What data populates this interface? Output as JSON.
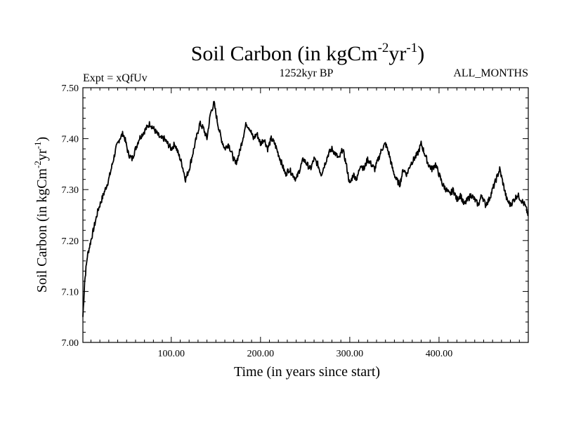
{
  "chart_data": {
    "type": "line",
    "title": {
      "main": "Soil Carbon (in kgCm",
      "sup1": "-2",
      "mid": "yr",
      "sup2": "-1",
      "end": ")"
    },
    "subtitle_left": "Expt = xQfUv",
    "subtitle_center": "1252kyr BP",
    "subtitle_right": "ALL_MONTHS",
    "xlabel": "Time (in years since start)",
    "ylabel": {
      "main": "Soil Carbon (in kgCm",
      "sup1": "-2",
      "mid": "yr",
      "sup2": "-1",
      "end": ")"
    },
    "xlim": [
      1,
      500
    ],
    "ylim": [
      7.0,
      7.5
    ],
    "x_ticks": [
      100,
      200,
      300,
      400
    ],
    "x_tick_labels": [
      "100.00",
      "200.00",
      "300.00",
      "400.00"
    ],
    "y_ticks": [
      7.0,
      7.1,
      7.2,
      7.3,
      7.4,
      7.5
    ],
    "y_tick_labels": [
      "7.00",
      "7.10",
      "7.20",
      "7.30",
      "7.40",
      "7.50"
    ],
    "grid": false,
    "line_color": "#000000",
    "series": [
      {
        "name": "Soil Carbon",
        "x": [
          1,
          3,
          6,
          10,
          14,
          18,
          22,
          26,
          30,
          34,
          38,
          42,
          46,
          48,
          52,
          56,
          60,
          64,
          68,
          72,
          76,
          80,
          84,
          88,
          92,
          96,
          100,
          104,
          108,
          112,
          116,
          120,
          124,
          128,
          132,
          136,
          140,
          144,
          148,
          152,
          156,
          160,
          164,
          168,
          172,
          176,
          180,
          184,
          188,
          192,
          196,
          200,
          204,
          208,
          212,
          216,
          220,
          224,
          228,
          232,
          236,
          240,
          244,
          248,
          252,
          256,
          260,
          264,
          268,
          272,
          276,
          280,
          284,
          288,
          292,
          296,
          300,
          304,
          308,
          312,
          316,
          320,
          324,
          328,
          332,
          336,
          340,
          344,
          348,
          352,
          356,
          360,
          364,
          368,
          372,
          376,
          380,
          384,
          388,
          392,
          396,
          400,
          404,
          408,
          412,
          416,
          420,
          424,
          428,
          432,
          436,
          440,
          444,
          448,
          452,
          456,
          460,
          464,
          468,
          472,
          476,
          480,
          484,
          488,
          492,
          496,
          500
        ],
        "values": [
          7.05,
          7.12,
          7.17,
          7.2,
          7.23,
          7.26,
          7.28,
          7.3,
          7.32,
          7.35,
          7.38,
          7.4,
          7.41,
          7.4,
          7.37,
          7.36,
          7.38,
          7.4,
          7.41,
          7.42,
          7.43,
          7.42,
          7.41,
          7.4,
          7.4,
          7.39,
          7.38,
          7.39,
          7.37,
          7.35,
          7.32,
          7.34,
          7.37,
          7.4,
          7.43,
          7.42,
          7.4,
          7.45,
          7.47,
          7.43,
          7.4,
          7.38,
          7.39,
          7.37,
          7.35,
          7.37,
          7.4,
          7.43,
          7.42,
          7.4,
          7.41,
          7.39,
          7.4,
          7.38,
          7.4,
          7.39,
          7.37,
          7.35,
          7.33,
          7.34,
          7.33,
          7.32,
          7.34,
          7.36,
          7.35,
          7.34,
          7.36,
          7.35,
          7.33,
          7.35,
          7.37,
          7.38,
          7.37,
          7.36,
          7.38,
          7.35,
          7.31,
          7.33,
          7.32,
          7.35,
          7.34,
          7.36,
          7.35,
          7.34,
          7.36,
          7.38,
          7.39,
          7.37,
          7.34,
          7.32,
          7.31,
          7.34,
          7.33,
          7.35,
          7.36,
          7.37,
          7.39,
          7.37,
          7.35,
          7.34,
          7.35,
          7.33,
          7.31,
          7.3,
          7.29,
          7.3,
          7.28,
          7.29,
          7.27,
          7.28,
          7.29,
          7.28,
          7.27,
          7.29,
          7.27,
          7.28,
          7.3,
          7.32,
          7.34,
          7.31,
          7.28,
          7.27,
          7.28,
          7.29,
          7.28,
          7.27,
          7.25
        ]
      }
    ]
  }
}
